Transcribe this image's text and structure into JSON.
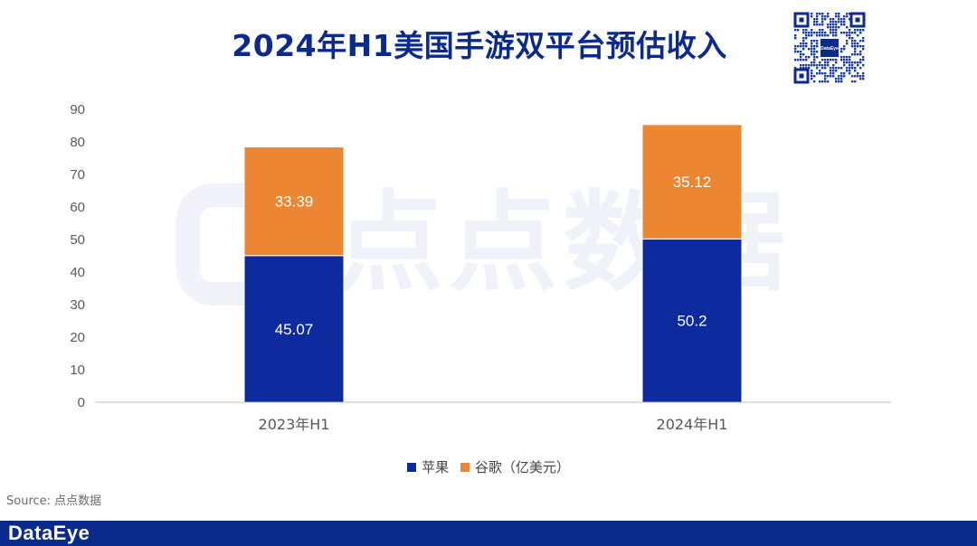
{
  "title": "2024年H1美国手游双平台预估收入",
  "watermark_text": "点点数据",
  "qr_label": "DataEye",
  "source": "Source: 点点数据",
  "footer_brand": "DataEye",
  "legend": {
    "apple": "苹果",
    "google": "谷歌（亿美元）"
  },
  "colors": {
    "title": "#0a2a8c",
    "apple": "#0d2b9e",
    "google": "#ed8633",
    "footer": "#0a2a8c"
  },
  "chart_data": {
    "type": "bar",
    "stacked": true,
    "categories": [
      "2023年H1",
      "2024年H1"
    ],
    "series": [
      {
        "name": "苹果",
        "values": [
          45.07,
          50.2
        ],
        "labels": [
          "45.07",
          "50.2"
        ]
      },
      {
        "name": "谷歌（亿美元）",
        "values": [
          33.39,
          35.12
        ],
        "labels": [
          "33.39",
          "35.12"
        ]
      }
    ],
    "title": "2024年H1美国手游双平台预估收入",
    "xlabel": "",
    "ylabel": "",
    "ylim": [
      0,
      90
    ],
    "yticks": [
      0,
      10,
      20,
      30,
      40,
      50,
      60,
      70,
      80,
      90
    ],
    "grid": false,
    "legend_position": "bottom"
  }
}
